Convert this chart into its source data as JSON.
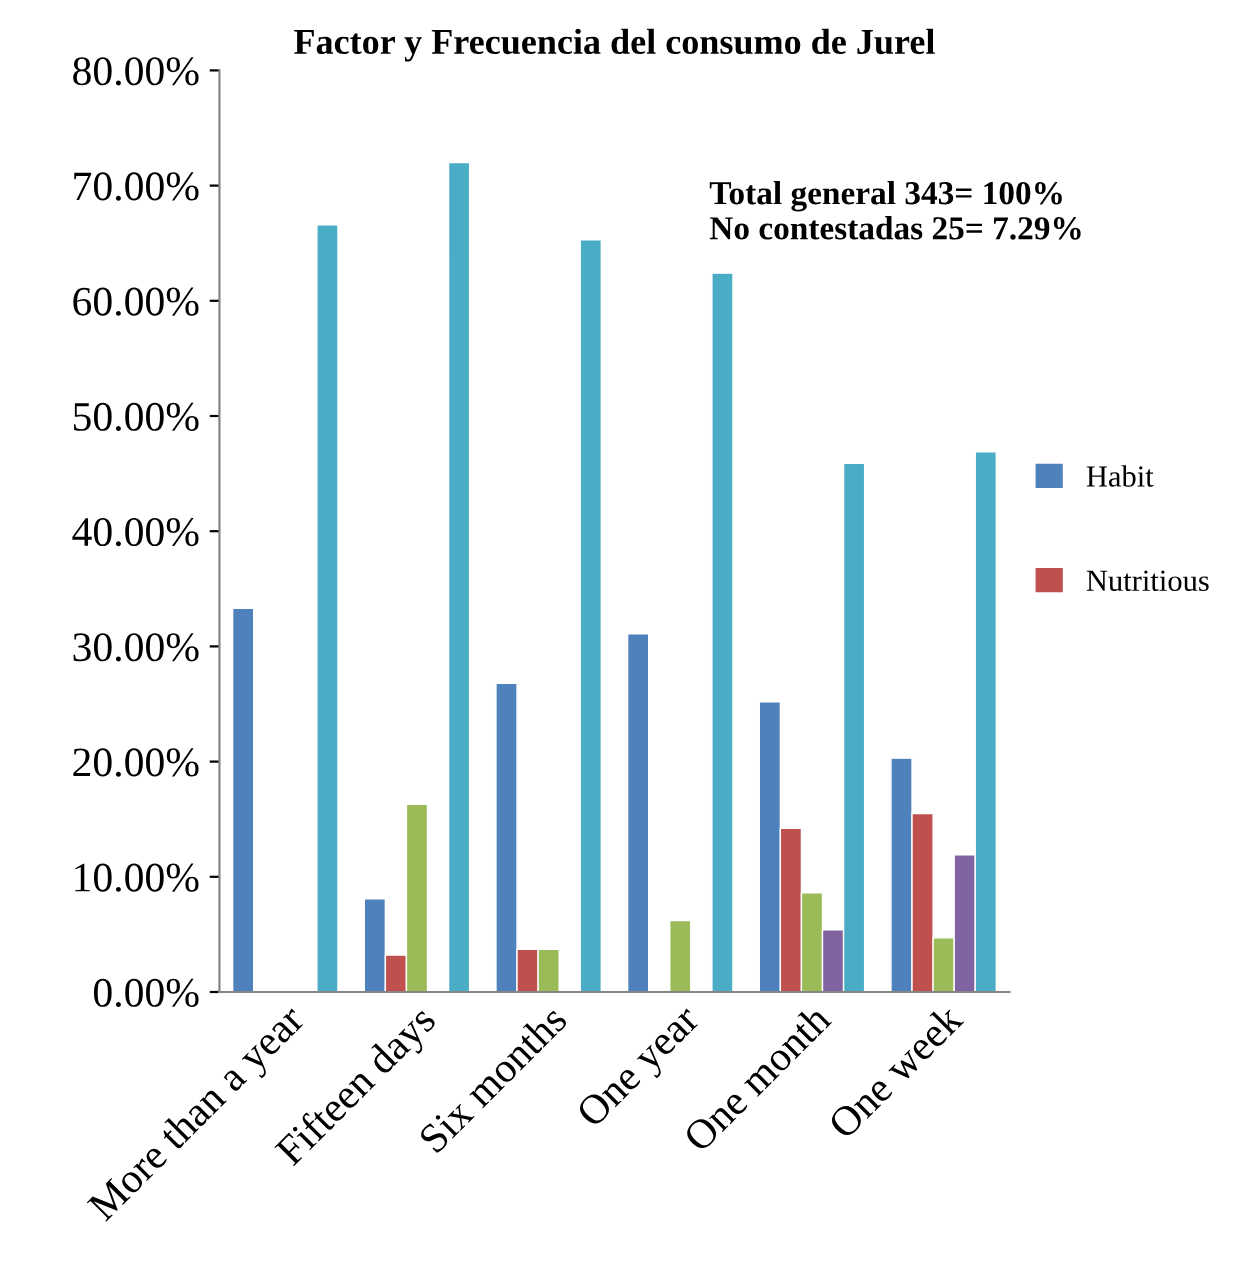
{
  "chart_data": {
    "type": "bar",
    "title": "Factor y Frecuencia del consumo de Jurel",
    "annotations": [
      "Total general 343= 100%\nNo contestadas 25= 7.29%"
    ],
    "categories": [
      "More than a year",
      "Fifteen days",
      "Six months",
      "One year",
      "One month",
      "One week"
    ],
    "series": [
      {
        "name": "Habit",
        "color": "#4f81bd",
        "values": [
          33.3,
          8.1,
          26.8,
          31.1,
          25.2,
          20.3
        ]
      },
      {
        "name": "Nutritious",
        "color": "#c0504d",
        "values": [
          null,
          3.2,
          3.7,
          null,
          14.2,
          15.5
        ]
      },
      {
        "color": "#9bbb59",
        "values": [
          null,
          16.3,
          3.7,
          6.2,
          8.6,
          4.7
        ]
      },
      {
        "color": "#8064a2",
        "values": [
          null,
          null,
          null,
          null,
          5.4,
          11.9
        ]
      },
      {
        "color": "#4bacc6",
        "values": [
          66.6,
          72.0,
          65.3,
          62.4,
          45.9,
          46.9
        ]
      }
    ],
    "ylim": [
      0,
      80
    ],
    "yticks": [
      {
        "value": 0,
        "label": "0.00%"
      },
      {
        "value": 10,
        "label": "10.00%"
      },
      {
        "value": 20,
        "label": "20.00%"
      },
      {
        "value": 30,
        "label": "30.00%"
      },
      {
        "value": 40,
        "label": "40.00%"
      },
      {
        "value": 50,
        "label": "50.00%"
      },
      {
        "value": 60,
        "label": "60.00%"
      },
      {
        "value": 70,
        "label": "70.00%"
      },
      {
        "value": 80,
        "label": "80.00%"
      }
    ],
    "grid": false,
    "legend": "right"
  }
}
